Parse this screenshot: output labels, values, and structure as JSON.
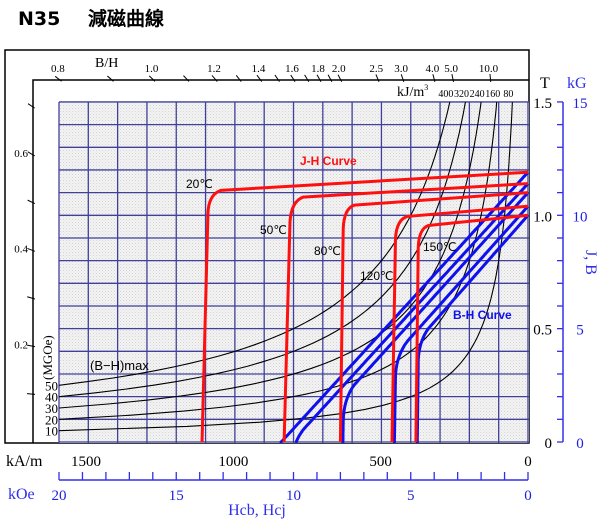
{
  "title": {
    "grade": "N35",
    "name": "減磁曲線"
  },
  "chart_data": {
    "type": "line",
    "title": "N35 減磁曲線",
    "x_axis": {
      "label": "Hcb,  Hcj",
      "range_kOe": [
        20,
        0
      ],
      "kAm_unit": "kA/m",
      "kAm_ticks": [
        "1500",
        "1000",
        "500",
        "0"
      ],
      "kAm_tick_values": [
        1500,
        1000,
        500,
        0
      ],
      "kOe_unit": "kOe",
      "kOe_ticks": [
        "20",
        "15",
        "10",
        "5",
        "0"
      ],
      "kOe_tick_values": [
        20,
        15,
        10,
        5,
        0
      ],
      "kOe_minor_step": 1
    },
    "y_axis": {
      "label": "J,  B",
      "range_T": [
        0,
        1.5
      ],
      "T_unit": "T",
      "T_ticks": [
        "0",
        "0.5",
        "1.0",
        "1.5"
      ],
      "T_tick_values": [
        0,
        0.5,
        1.0,
        1.5
      ],
      "kG_unit": "kG",
      "kG_ticks": [
        "0",
        "5",
        "10",
        "15"
      ],
      "kG_tick_values": [
        0,
        5,
        10,
        15
      ],
      "kG_minor_step": 1
    },
    "grid": {
      "on": true,
      "columns": 16,
      "rows": 15
    },
    "permeance": {
      "label": "B/H",
      "top_ticks": [
        0.8,
        0.9,
        1.0,
        1.1,
        1.2,
        1.3,
        1.4,
        1.5,
        1.6,
        1.7,
        1.8,
        1.9,
        2.0,
        2.5,
        3.0,
        4.0,
        5.0,
        10.0
      ],
      "top_labels": [
        "0.8",
        "1.0",
        "1.2",
        "1.4",
        "1.6",
        "1.8",
        "2.0",
        "2.5",
        "3.0",
        "4.0",
        "5.0",
        "10.0"
      ],
      "top_label_values": [
        0.8,
        1.0,
        1.2,
        1.4,
        1.6,
        1.8,
        2.0,
        2.5,
        3.0,
        4.0,
        5.0,
        10.0
      ],
      "left_ticks": [
        0.1,
        0.2,
        0.3,
        0.4,
        0.5,
        0.6,
        0.7
      ],
      "left_labels": [
        "0.2",
        "0.4",
        "0.6"
      ],
      "left_label_values": [
        0.2,
        0.4,
        0.6
      ]
    },
    "energy": {
      "label": "(B−H)max",
      "unit_mgoe": "(MGOe)",
      "unit_kj": "kJ/m",
      "unit_kj_sup": "3",
      "mgoe_labels": [
        "50",
        "40",
        "30",
        "20",
        "10"
      ],
      "kj_labels": [
        "400",
        "320",
        "240",
        "160",
        "80"
      ],
      "mgoe_values": [
        50,
        40,
        30,
        20,
        10
      ]
    },
    "jh_label": "J-H Curve",
    "bh_label": "B-H Curve",
    "bh_slope_T_per_kOe": 0.107,
    "series": [
      {
        "name": "20℃",
        "Br_T": 1.19,
        "Hcj_kOe": 13.9,
        "points": [
          [
            0,
            1.19
          ],
          [
            13.1,
            1.11
          ],
          [
            13.65,
            1.09
          ],
          [
            13.65,
            1.0
          ],
          [
            13.9,
            0
          ]
        ]
      },
      {
        "name": "50℃",
        "Br_T": 1.14,
        "Hcj_kOe": 10.4,
        "points": [
          [
            0,
            1.14
          ],
          [
            9.6,
            1.08
          ],
          [
            10.1,
            1.06
          ],
          [
            10.15,
            0.97
          ],
          [
            10.4,
            0
          ]
        ]
      },
      {
        "name": "80℃",
        "Br_T": 1.1,
        "Hcj_kOe": 8.0,
        "points": [
          [
            0,
            1.1
          ],
          [
            7.4,
            1.045
          ],
          [
            7.85,
            1.03
          ],
          [
            7.88,
            0.94
          ],
          [
            8.0,
            0
          ]
        ]
      },
      {
        "name": "120℃",
        "Br_T": 1.04,
        "Hcj_kOe": 5.8,
        "points": [
          [
            0,
            1.04
          ],
          [
            5.15,
            0.995
          ],
          [
            5.6,
            0.98
          ],
          [
            5.65,
            0.9
          ],
          [
            5.8,
            0
          ]
        ]
      },
      {
        "name": "150℃",
        "Br_T": 1.0,
        "Hcj_kOe": 4.78,
        "points": [
          [
            0,
            1.0
          ],
          [
            4.25,
            0.955
          ],
          [
            4.65,
            0.94
          ],
          [
            4.68,
            0.86
          ],
          [
            4.78,
            0
          ]
        ]
      }
    ],
    "colors": {
      "jh": "#ff1010",
      "bh": "#1010ee",
      "grid": "#40409c",
      "axis_blue": "#3030e8"
    }
  }
}
